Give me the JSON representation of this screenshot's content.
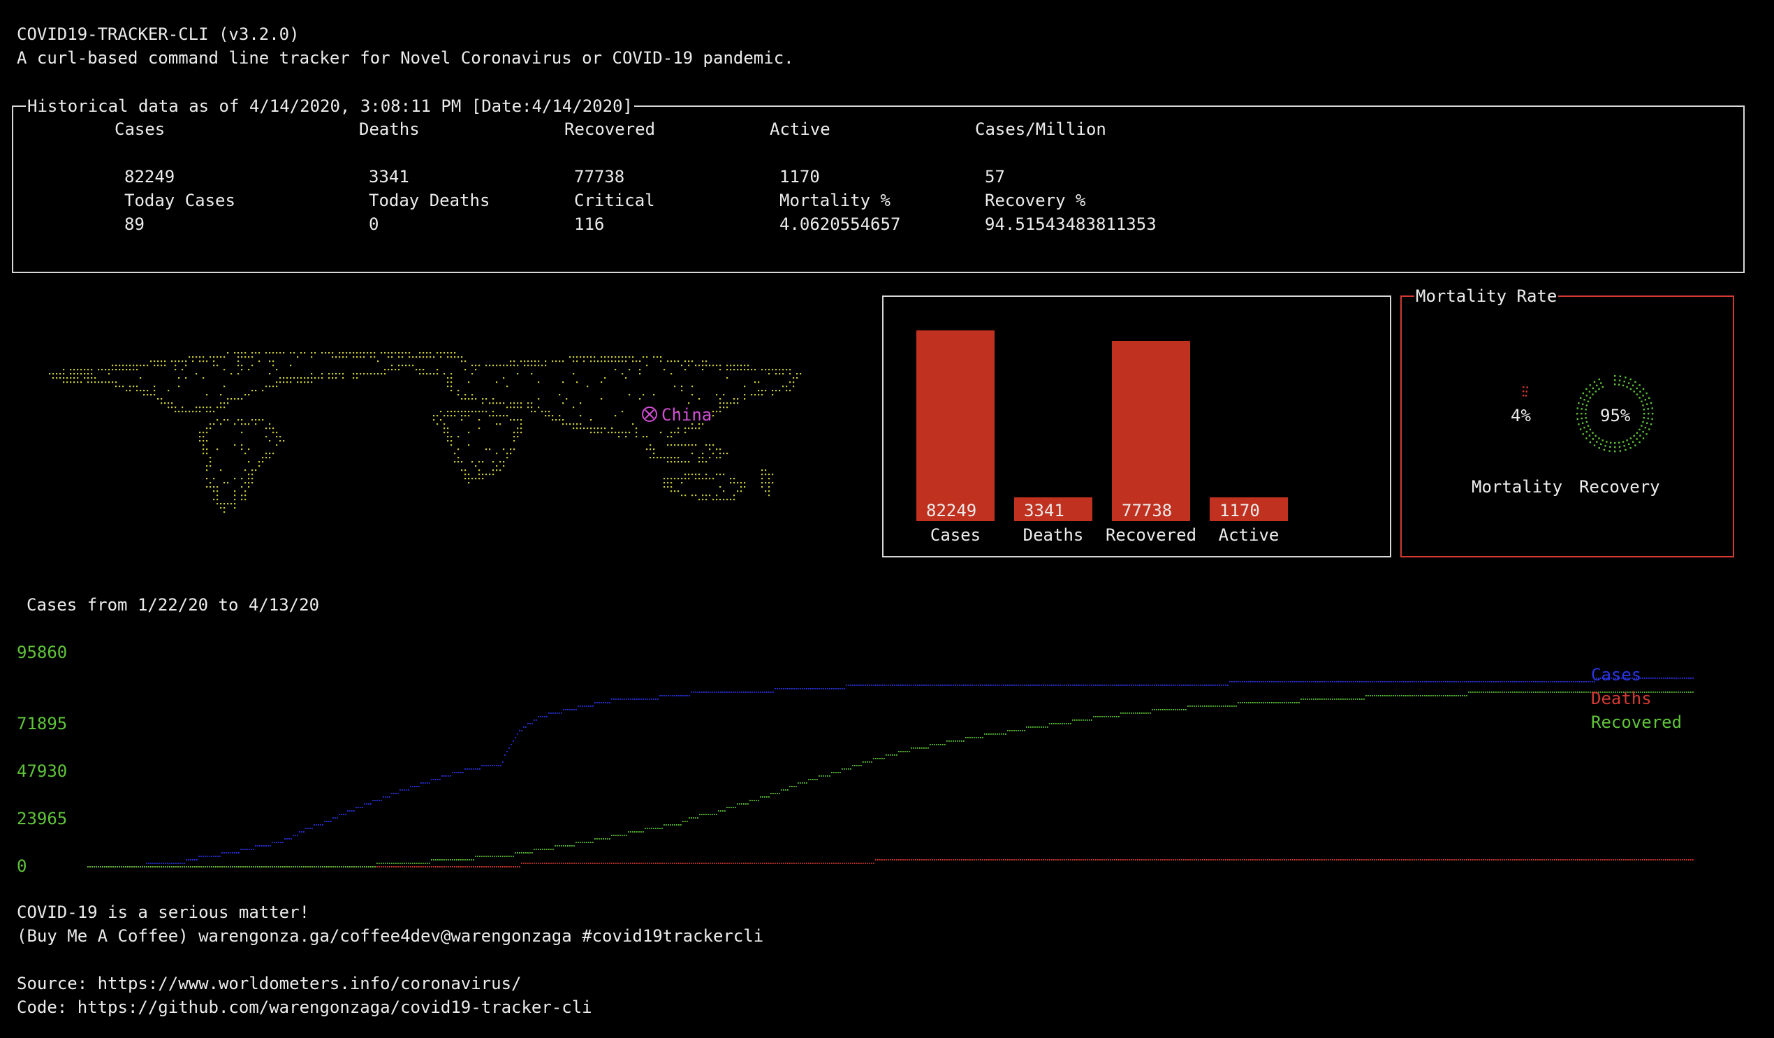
{
  "header": {
    "title": "COVID19-TRACKER-CLI (v3.2.0)",
    "subtitle": "A curl-based command line tracker for Novel Coronavirus or COVID-19 pandemic."
  },
  "historical": {
    "box_title": "Historical data as of 4/14/2020, 3:08:11 PM [Date:4/14/2020]",
    "headers": [
      "Cases",
      "Deaths",
      "Recovered",
      "Active",
      "Cases/Million"
    ],
    "values_row1": [
      "82249",
      "3341",
      "77738",
      "1170",
      "57"
    ],
    "labels_row2": [
      "Today Cases",
      "Today Deaths",
      "Critical",
      "Mortality %",
      "Recovery %"
    ],
    "values_row2": [
      "89",
      "0",
      "116",
      "4.0620554657",
      "94.51543483811353"
    ]
  },
  "map": {
    "country_label": "China",
    "marker_icon": "circled-x-icon",
    "dot_color": "#c9c93a",
    "marker_color": "#d24fd6"
  },
  "bar_panel": {
    "chart_data": {
      "type": "bar",
      "categories": [
        "Cases",
        "Deaths",
        "Recovered",
        "Active"
      ],
      "values": [
        82249,
        3341,
        77738,
        1170
      ],
      "value_labels": [
        "82249",
        "3341",
        "77738",
        "1170"
      ],
      "bar_color": "#c0311f"
    }
  },
  "mortality_panel": {
    "title": "Mortality Rate",
    "mortality_pct": "4%",
    "recovery_pct": "95%",
    "mortality_label": "Mortality",
    "recovery_label": "Recovery",
    "mortality_value": 4,
    "recovery_value": 95
  },
  "line_chart": {
    "title": "Cases from 1/22/20 to 4/13/20",
    "y_ticks": [
      "95860",
      "71895",
      "47930",
      "23965",
      "0"
    ],
    "legend": [
      {
        "name": "Cases",
        "color": "#2b35e6"
      },
      {
        "name": "Deaths",
        "color": "#d23a32"
      },
      {
        "name": "Recovered",
        "color": "#5fc43a"
      }
    ],
    "chart_data": {
      "type": "line",
      "x_range": [
        "1/22/20",
        "4/13/20"
      ],
      "ylim": [
        0,
        95860
      ],
      "series": [
        {
          "name": "Cases",
          "values": [
            548,
            643,
            920,
            1406,
            2075,
            2877,
            5509,
            6087,
            8141,
            9802,
            11891,
            16630,
            19716,
            23707,
            27440,
            30587,
            34110,
            36814,
            39829,
            42354,
            44386,
            44759,
            59895,
            66358,
            68413,
            70513,
            72434,
            74211,
            74619,
            75077,
            75550,
            77001,
            77022,
            77241,
            77754,
            78166,
            78600,
            78928,
            79356,
            79932,
            80136,
            80261,
            80386,
            80537,
            80690,
            80770,
            80823,
            80860,
            80887,
            80921,
            80932,
            80945,
            80977,
            81003,
            81033,
            81058,
            81102,
            81156,
            81250,
            81305,
            81435,
            81498,
            81591,
            81661,
            81782,
            81897,
            81999,
            82122,
            82198,
            82279,
            82361,
            82432,
            82511,
            82543,
            82602,
            82665,
            82718,
            82809,
            82883,
            82941,
            83014,
            83134,
            83213
          ]
        },
        {
          "name": "Deaths",
          "values": [
            17,
            18,
            26,
            42,
            56,
            82,
            131,
            133,
            171,
            213,
            259,
            361,
            425,
            490,
            562,
            632,
            717,
            804,
            904,
            1011,
            1112,
            1117,
            1369,
            1521,
            1663,
            1766,
            1864,
            2003,
            2116,
            2238,
            2238,
            2443,
            2445,
            2595,
            2665,
            2717,
            2746,
            2790,
            2837,
            2872,
            2914,
            2947,
            2983,
            3015,
            3044,
            3072,
            3100,
            3123,
            3139,
            3161,
            3172,
            3180,
            3193,
            3203,
            3217,
            3230,
            3241,
            3249,
            3253,
            3259,
            3274,
            3274,
            3281,
            3285,
            3291,
            3296,
            3299,
            3304,
            3308,
            3309,
            3316,
            3322,
            3326,
            3330,
            3333,
            3335,
            3335,
            3337,
            3339,
            3340,
            3343,
            3343,
            3345
          ]
        },
        {
          "name": "Recovered",
          "values": [
            28,
            30,
            36,
            39,
            49,
            58,
            101,
            120,
            135,
            214,
            275,
            463,
            614,
            843,
            1115,
            1477,
            1999,
            2596,
            3219,
            3918,
            4636,
            5082,
            6217,
            7977,
            9298,
            10755,
            12462,
            14206,
            15962,
            18014,
            18704,
            22699,
            23783,
            27353,
            29775,
            32531,
            36157,
            39049,
            41675,
            44518,
            47260,
            49914,
            52109,
            53793,
            55477,
            57143,
            58684,
            59883,
            61475,
            62793,
            64111,
            65541,
            66911,
            67749,
            68679,
            69601,
            70420,
            71150,
            71740,
            72244,
            72703,
            73159,
            73650,
            74051,
            74600,
            74978,
            75582,
            75923,
            76206,
            76405,
            76565,
            76760,
            76946,
            77207,
            77310,
            77410,
            77567,
            77679,
            77791,
            77877,
            77956,
            78039,
            78138
          ]
        }
      ]
    }
  },
  "footer": {
    "line1": "COVID-19 is a serious matter!",
    "line2": "(Buy Me A Coffee) warengonza.ga/coffee4dev@warengonzaga #covid19trackercli",
    "line3": "Source: https://www.worldometers.info/coronavirus/",
    "line4": "Code: https://github.com/warengonzaga/covid19-tracker-cli"
  }
}
